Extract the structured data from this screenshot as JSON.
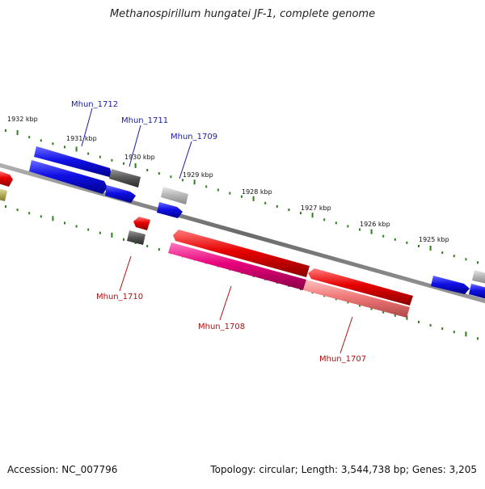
{
  "title": "Methanospirillum hungatei JF-1, complete genome",
  "footer": {
    "accession": "Accession: NC_007796",
    "summary": "Topology: circular; Length: 3,544,738 bp; Genes: 3,205"
  },
  "colors": {
    "backbone": "#777777",
    "tick": "#2e7d1f",
    "forward_label": "#1a1aa8",
    "reverse_label": "#b01010",
    "blue": "#1010e6",
    "red": "#e60000",
    "magenta": "#e6007a",
    "pink": "#f07878",
    "gray_dark": "#5a5a5a",
    "gray_light": "#b8b8b8",
    "olive": "#b8b060"
  },
  "ticks": [
    {
      "label": "1932 kbp"
    },
    {
      "label": "1931 kbp"
    },
    {
      "label": "1930 kbp"
    },
    {
      "label": "1929 kbp"
    },
    {
      "label": "1928 kbp"
    },
    {
      "label": "1927 kbp"
    },
    {
      "label": "1926 kbp"
    },
    {
      "label": "1925 kbp"
    }
  ],
  "gene_labels": [
    {
      "name": "Mhun_1712",
      "strand": "forward"
    },
    {
      "name": "Mhun_1711",
      "strand": "forward"
    },
    {
      "name": "Mhun_1709",
      "strand": "forward"
    },
    {
      "name": "Mhun_1710",
      "strand": "reverse"
    },
    {
      "name": "Mhun_1708",
      "strand": "reverse"
    },
    {
      "name": "Mhun_1707",
      "strand": "reverse"
    }
  ]
}
